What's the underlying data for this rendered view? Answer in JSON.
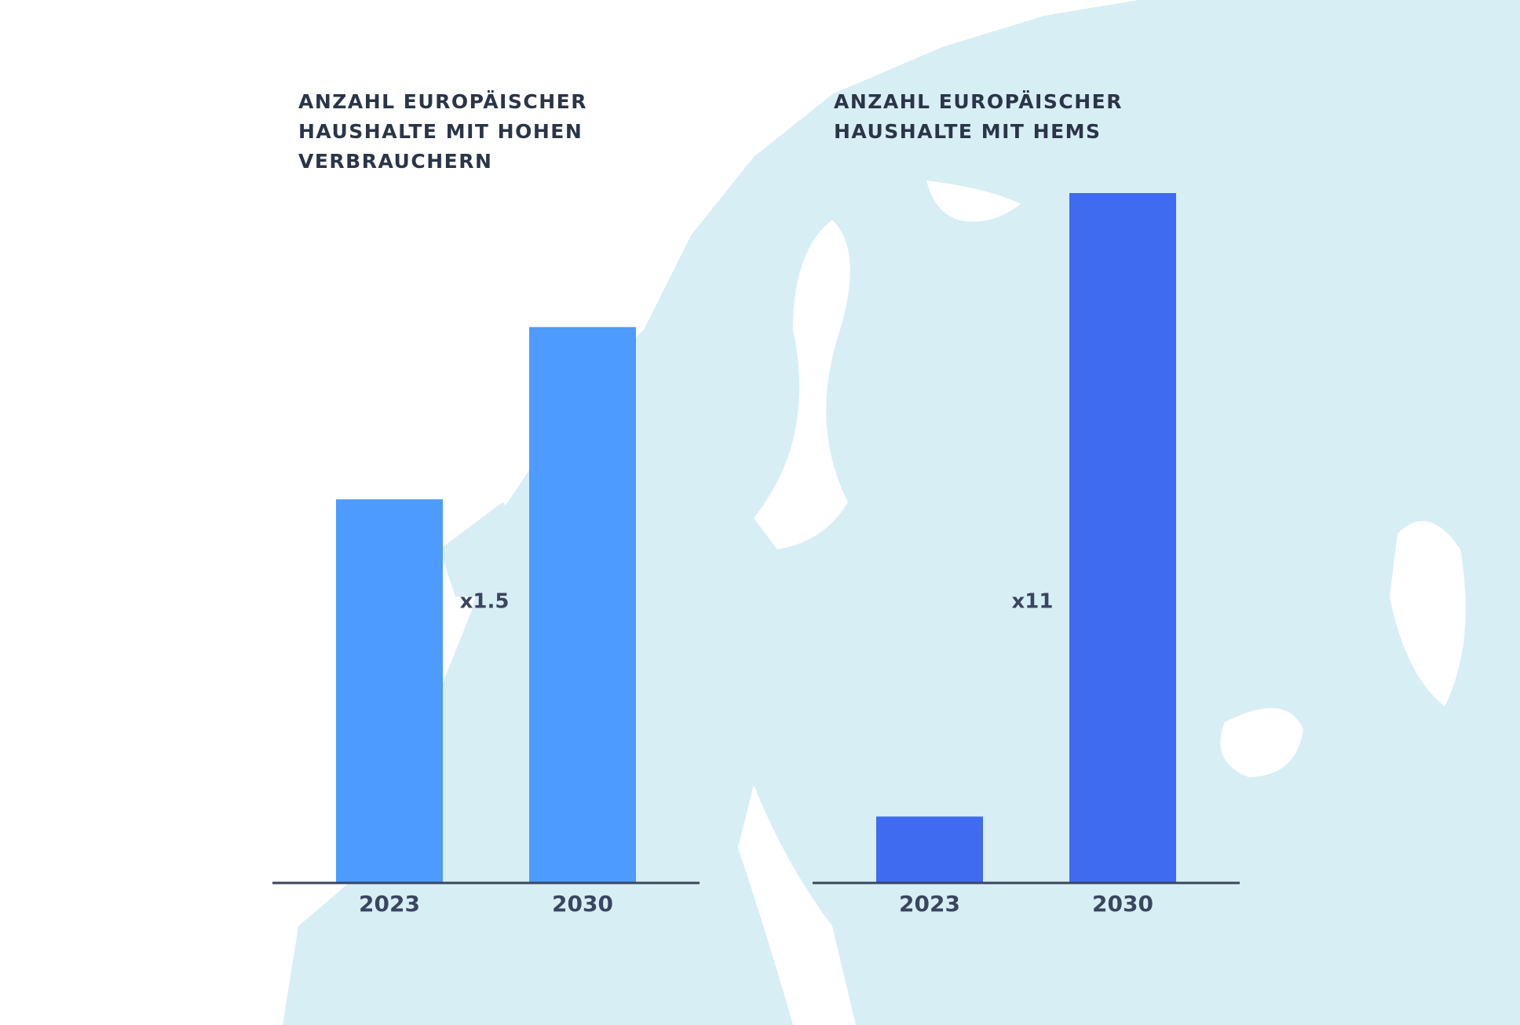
{
  "chart_data": [
    {
      "type": "bar",
      "title": [
        "ANZAHL EUROPÄISCHER",
        "HAUSHALTE MIT HOHEN",
        "VERBRAUCHERN"
      ],
      "categories": [
        "2023",
        "2030"
      ],
      "values": [
        1,
        1.45
      ],
      "color": "#4d9bff",
      "ylim": [
        0,
        1.8
      ],
      "annotation": "x1.5"
    },
    {
      "type": "bar",
      "title": [
        "ANZAHL EUROPÄISCHER",
        "HAUSHALTE MIT HEMS"
      ],
      "categories": [
        "2023",
        "2030"
      ],
      "values": [
        1,
        10.5
      ],
      "color": "#3f6bf0",
      "ylim": [
        0,
        10.5
      ],
      "annotation": "x11"
    }
  ]
}
